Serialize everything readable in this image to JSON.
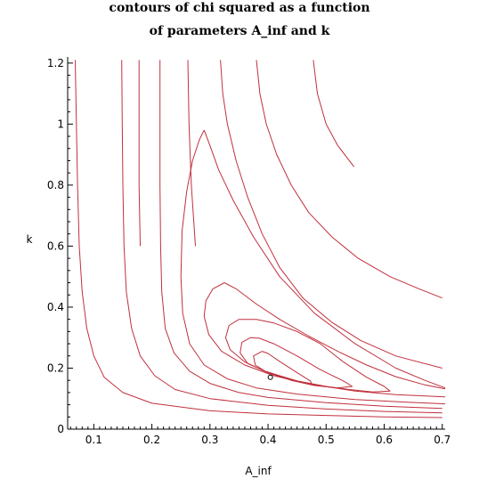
{
  "chart_data": {
    "type": "line",
    "title": "contours of chi squared as a function",
    "subtitle": "of parameters A_inf and k",
    "xlabel": "A_inf",
    "ylabel": "k",
    "xlim": [
      0.055,
      0.705
    ],
    "ylim": [
      0,
      1.22
    ],
    "x_ticks": [
      0.1,
      0.2,
      0.3,
      0.4,
      0.5,
      0.6,
      0.7
    ],
    "x_tick_labels": [
      "0.1",
      "0.2",
      "0.3",
      "0.4",
      "0.5",
      "0.6",
      "0.7"
    ],
    "y_ticks": [
      0,
      0.2,
      0.4,
      0.6,
      0.8,
      1,
      1.2
    ],
    "y_tick_labels": [
      "0",
      "0.2",
      "0.4",
      "0.6",
      "0.8",
      "1",
      "1.2"
    ],
    "line_color": "#c0303c",
    "minimum_point": {
      "x": 0.404,
      "y": 0.17
    },
    "series": [
      {
        "values": [
          [
            0.068,
            1.21
          ],
          [
            0.07,
            1.0
          ],
          [
            0.072,
            0.8
          ],
          [
            0.075,
            0.6
          ],
          [
            0.08,
            0.45
          ],
          [
            0.088,
            0.33
          ],
          [
            0.1,
            0.24
          ],
          [
            0.118,
            0.17
          ],
          [
            0.15,
            0.12
          ],
          [
            0.2,
            0.085
          ],
          [
            0.3,
            0.06
          ],
          [
            0.4,
            0.05
          ],
          [
            0.5,
            0.045
          ],
          [
            0.6,
            0.04
          ],
          [
            0.7,
            0.038
          ]
        ]
      },
      {
        "values": [
          [
            0.148,
            1.21
          ],
          [
            0.149,
            1.0
          ],
          [
            0.15,
            0.8
          ],
          [
            0.152,
            0.6
          ],
          [
            0.156,
            0.45
          ],
          [
            0.165,
            0.33
          ],
          [
            0.18,
            0.24
          ],
          [
            0.205,
            0.175
          ],
          [
            0.24,
            0.13
          ],
          [
            0.3,
            0.1
          ],
          [
            0.4,
            0.078
          ],
          [
            0.5,
            0.066
          ],
          [
            0.6,
            0.058
          ],
          [
            0.7,
            0.053
          ]
        ]
      },
      {
        "values": [
          [
            0.214,
            1.21
          ],
          [
            0.214,
            1.0
          ],
          [
            0.214,
            0.8
          ],
          [
            0.215,
            0.6
          ],
          [
            0.217,
            0.45
          ],
          [
            0.223,
            0.33
          ],
          [
            0.238,
            0.25
          ],
          [
            0.265,
            0.19
          ],
          [
            0.3,
            0.15
          ],
          [
            0.35,
            0.12
          ],
          [
            0.4,
            0.104
          ],
          [
            0.5,
            0.087
          ],
          [
            0.6,
            0.075
          ],
          [
            0.7,
            0.068
          ]
        ]
      },
      {
        "values": [
          [
            0.29,
            0.98
          ],
          [
            0.282,
            0.95
          ],
          [
            0.27,
            0.88
          ],
          [
            0.26,
            0.78
          ],
          [
            0.252,
            0.65
          ],
          [
            0.25,
            0.5
          ],
          [
            0.253,
            0.38
          ],
          [
            0.265,
            0.28
          ],
          [
            0.29,
            0.21
          ],
          [
            0.33,
            0.165
          ],
          [
            0.38,
            0.135
          ],
          [
            0.45,
            0.115
          ],
          [
            0.55,
            0.097
          ],
          [
            0.64,
            0.088
          ],
          [
            0.705,
            0.083
          ]
        ]
      },
      {
        "values": [
          [
            0.29,
            0.98
          ],
          [
            0.3,
            0.93
          ],
          [
            0.315,
            0.85
          ],
          [
            0.34,
            0.75
          ],
          [
            0.375,
            0.63
          ],
          [
            0.42,
            0.5
          ],
          [
            0.48,
            0.38
          ],
          [
            0.55,
            0.28
          ],
          [
            0.62,
            0.2
          ],
          [
            0.67,
            0.16
          ],
          [
            0.705,
            0.135
          ]
        ]
      },
      {
        "values": [
          [
            0.325,
            0.48
          ],
          [
            0.305,
            0.46
          ],
          [
            0.293,
            0.42
          ],
          [
            0.29,
            0.37
          ],
          [
            0.298,
            0.31
          ],
          [
            0.32,
            0.255
          ],
          [
            0.36,
            0.21
          ],
          [
            0.41,
            0.175
          ],
          [
            0.47,
            0.148
          ],
          [
            0.55,
            0.125
          ],
          [
            0.62,
            0.113
          ],
          [
            0.705,
            0.106
          ]
        ]
      },
      {
        "values": [
          [
            0.325,
            0.48
          ],
          [
            0.345,
            0.46
          ],
          [
            0.38,
            0.41
          ],
          [
            0.42,
            0.36
          ],
          [
            0.47,
            0.305
          ],
          [
            0.52,
            0.255
          ],
          [
            0.57,
            0.21
          ],
          [
            0.62,
            0.172
          ],
          [
            0.67,
            0.145
          ],
          [
            0.705,
            0.132
          ]
        ]
      },
      {
        "values": [
          [
            0.35,
            0.36
          ],
          [
            0.333,
            0.34
          ],
          [
            0.327,
            0.3
          ],
          [
            0.335,
            0.26
          ],
          [
            0.36,
            0.22
          ],
          [
            0.4,
            0.185
          ],
          [
            0.45,
            0.158
          ],
          [
            0.5,
            0.14
          ],
          [
            0.54,
            0.13
          ],
          [
            0.58,
            0.122
          ],
          [
            0.61,
            0.125
          ],
          [
            0.6,
            0.14
          ],
          [
            0.57,
            0.17
          ],
          [
            0.53,
            0.22
          ],
          [
            0.49,
            0.28
          ],
          [
            0.45,
            0.32
          ],
          [
            0.41,
            0.348
          ],
          [
            0.38,
            0.36
          ],
          [
            0.35,
            0.36
          ]
        ]
      },
      {
        "values": [
          [
            0.37,
            0.3
          ],
          [
            0.355,
            0.285
          ],
          [
            0.352,
            0.25
          ],
          [
            0.365,
            0.215
          ],
          [
            0.4,
            0.185
          ],
          [
            0.44,
            0.16
          ],
          [
            0.48,
            0.143
          ],
          [
            0.52,
            0.135
          ],
          [
            0.545,
            0.14
          ],
          [
            0.53,
            0.158
          ],
          [
            0.49,
            0.195
          ],
          [
            0.45,
            0.24
          ],
          [
            0.41,
            0.28
          ],
          [
            0.385,
            0.298
          ],
          [
            0.37,
            0.3
          ]
        ]
      },
      {
        "values": [
          [
            0.39,
            0.255
          ],
          [
            0.375,
            0.24
          ],
          [
            0.378,
            0.21
          ],
          [
            0.395,
            0.19
          ],
          [
            0.42,
            0.175
          ],
          [
            0.45,
            0.158
          ],
          [
            0.475,
            0.148
          ],
          [
            0.473,
            0.158
          ],
          [
            0.45,
            0.185
          ],
          [
            0.42,
            0.222
          ],
          [
            0.4,
            0.248
          ],
          [
            0.39,
            0.255
          ]
        ]
      },
      {
        "values": [
          [
            0.178,
            1.21
          ],
          [
            0.178,
            1.0
          ],
          [
            0.178,
            0.8
          ],
          [
            0.18,
            0.6
          ]
        ]
      },
      {
        "values": [
          [
            0.262,
            1.21
          ],
          [
            0.264,
            1.0
          ],
          [
            0.268,
            0.8
          ],
          [
            0.275,
            0.6
          ]
        ]
      },
      {
        "values": [
          [
            0.318,
            1.21
          ],
          [
            0.322,
            1.1
          ],
          [
            0.33,
            1.0
          ],
          [
            0.345,
            0.88
          ],
          [
            0.365,
            0.76
          ],
          [
            0.39,
            0.64
          ],
          [
            0.42,
            0.53
          ],
          [
            0.46,
            0.43
          ],
          [
            0.51,
            0.35
          ],
          [
            0.56,
            0.29
          ],
          [
            0.62,
            0.24
          ],
          [
            0.7,
            0.2
          ]
        ]
      },
      {
        "values": [
          [
            0.38,
            1.21
          ],
          [
            0.386,
            1.1
          ],
          [
            0.397,
            1.0
          ],
          [
            0.415,
            0.9
          ],
          [
            0.44,
            0.8
          ],
          [
            0.47,
            0.71
          ],
          [
            0.51,
            0.63
          ],
          [
            0.555,
            0.56
          ],
          [
            0.61,
            0.5
          ],
          [
            0.66,
            0.46
          ],
          [
            0.7,
            0.43
          ]
        ]
      },
      {
        "values": [
          [
            0.478,
            1.21
          ],
          [
            0.485,
            1.1
          ],
          [
            0.5,
            1.0
          ],
          [
            0.52,
            0.93
          ],
          [
            0.548,
            0.86
          ]
        ]
      }
    ]
  }
}
